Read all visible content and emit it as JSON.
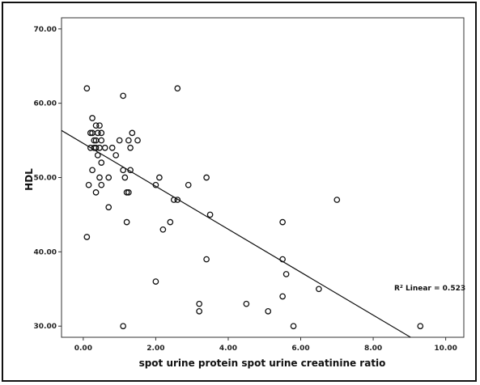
{
  "chart_data": {
    "type": "scatter",
    "title": "",
    "xlabel": "spot urine protein spot urine creatinine ratio",
    "ylabel": "HDL",
    "xlim": [
      -0.6,
      10.5
    ],
    "ylim": [
      28.5,
      71.5
    ],
    "x_ticks": [
      0,
      2,
      4,
      6,
      8,
      10
    ],
    "x_tick_labels": [
      "0.00",
      "2.00",
      "4.00",
      "6.00",
      "8.00",
      "10.00"
    ],
    "y_ticks": [
      30,
      40,
      50,
      60,
      70
    ],
    "y_tick_labels": [
      "30.00",
      "40.00",
      "50.00",
      "60.00",
      "70.00"
    ],
    "grid": false,
    "fit_line": {
      "intercept": 54.6,
      "slope": -2.89
    },
    "annotation": "R² Linear = 0.523",
    "points": [
      [
        0.1,
        62
      ],
      [
        0.25,
        58
      ],
      [
        0.35,
        57
      ],
      [
        0.2,
        56
      ],
      [
        0.25,
        56
      ],
      [
        0.3,
        55
      ],
      [
        0.35,
        55
      ],
      [
        0.4,
        56
      ],
      [
        0.45,
        57
      ],
      [
        0.5,
        56
      ],
      [
        0.3,
        54
      ],
      [
        0.35,
        54
      ],
      [
        0.45,
        54
      ],
      [
        0.5,
        55
      ],
      [
        0.6,
        54
      ],
      [
        0.2,
        54
      ],
      [
        0.4,
        53
      ],
      [
        0.25,
        51
      ],
      [
        0.5,
        52
      ],
      [
        0.45,
        50
      ],
      [
        0.15,
        49
      ],
      [
        0.35,
        48
      ],
      [
        0.5,
        49
      ],
      [
        0.8,
        54
      ],
      [
        0.9,
        53
      ],
      [
        1.0,
        55
      ],
      [
        1.1,
        61
      ],
      [
        0.7,
        50
      ],
      [
        1.1,
        51
      ],
      [
        1.15,
        50
      ],
      [
        1.3,
        54
      ],
      [
        1.35,
        56
      ],
      [
        1.25,
        55
      ],
      [
        1.5,
        55
      ],
      [
        1.3,
        51
      ],
      [
        1.2,
        48
      ],
      [
        1.25,
        48
      ],
      [
        0.7,
        46
      ],
      [
        1.1,
        30
      ],
      [
        1.2,
        44
      ],
      [
        2.0,
        49
      ],
      [
        2.1,
        50
      ],
      [
        2.0,
        36
      ],
      [
        2.2,
        43
      ],
      [
        2.4,
        44
      ],
      [
        2.5,
        47
      ],
      [
        2.6,
        47
      ],
      [
        2.6,
        62
      ],
      [
        2.9,
        49
      ],
      [
        3.4,
        50
      ],
      [
        3.5,
        45
      ],
      [
        3.4,
        39
      ],
      [
        3.2,
        33
      ],
      [
        3.2,
        32
      ],
      [
        4.5,
        33
      ],
      [
        5.1,
        32
      ],
      [
        5.5,
        44
      ],
      [
        5.5,
        39
      ],
      [
        5.5,
        34
      ],
      [
        5.6,
        37
      ],
      [
        5.8,
        30
      ],
      [
        6.5,
        35
      ],
      [
        7.0,
        47
      ],
      [
        9.3,
        30
      ],
      [
        0.1,
        42
      ]
    ]
  }
}
